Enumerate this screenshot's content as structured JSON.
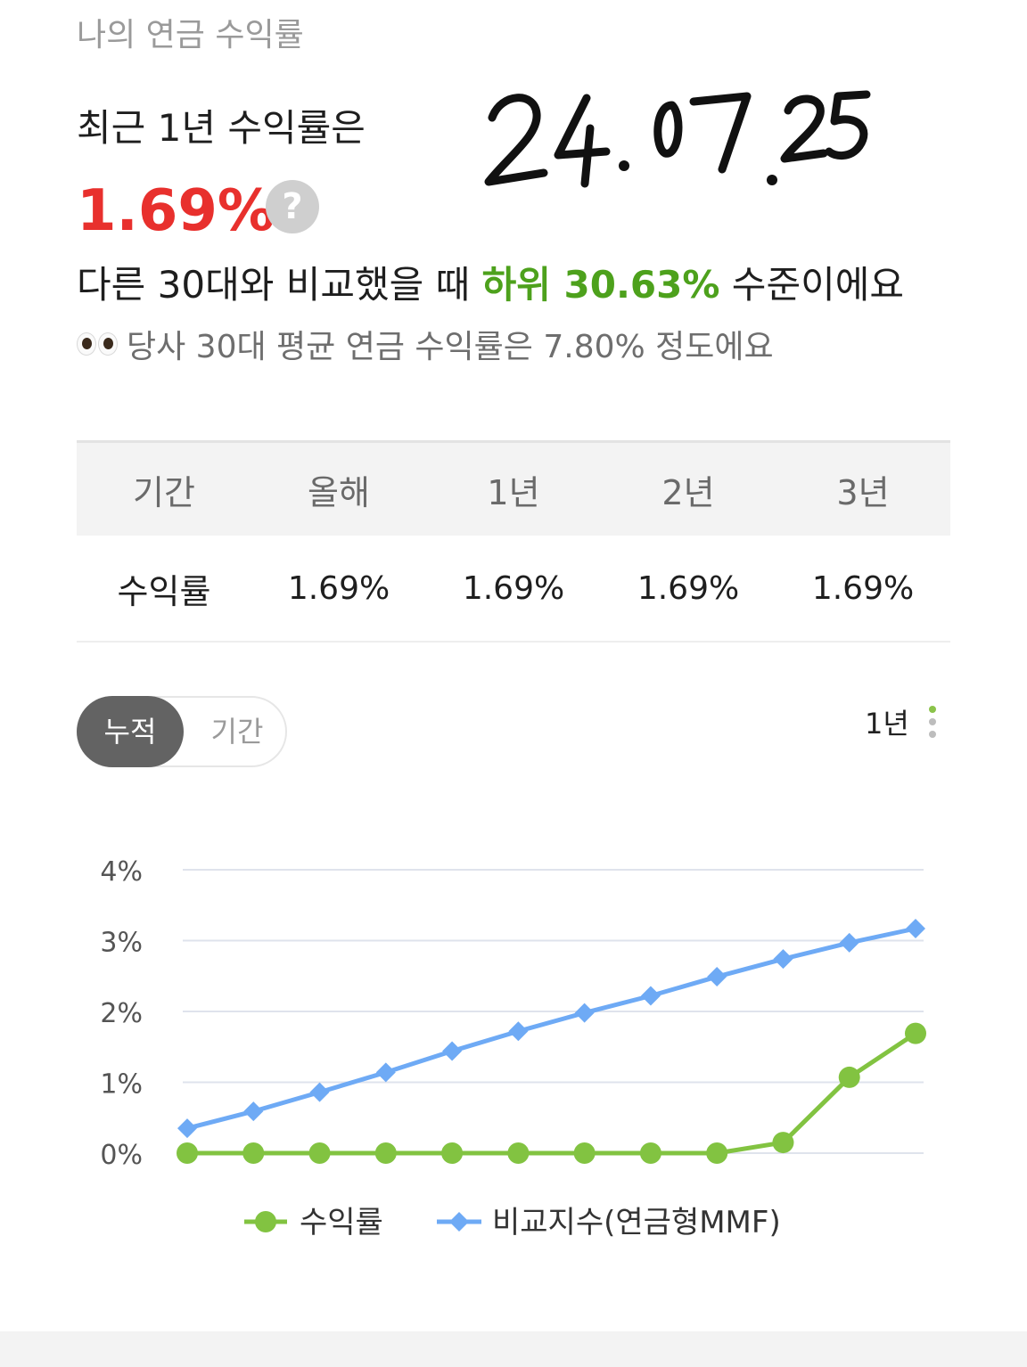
{
  "header": {
    "title": "나의 연금 수익률",
    "recent_label": "최근 1년 수익률은",
    "main_rate": "1.69%",
    "help_icon": "question-circle-icon",
    "handwritten_date": "24.07.25"
  },
  "comparison": {
    "prefix": "다른 30대와 비교했을 때 ",
    "highlight": "하위 30.63%",
    "suffix": " 수준이에요",
    "average_icon": "eyes-emoji-icon",
    "average_text": "당사 30대 평균 연금 수익률은 7.80% 정도에요"
  },
  "returns_table": {
    "headers": [
      "기간",
      "올해",
      "1년",
      "2년",
      "3년"
    ],
    "row_label": "수익률",
    "values": [
      "1.69%",
      "1.69%",
      "1.69%",
      "1.69%"
    ]
  },
  "controls": {
    "toggle_active": "누적",
    "toggle_inactive": "기간",
    "period": "1년",
    "menu_icon": "vertical-dots-icon"
  },
  "colors": {
    "accent_red": "#e8302d",
    "accent_green": "#4da11c",
    "return_series": "#82c341",
    "benchmark_series": "#6eaaf5",
    "grid": "#dfe3ec",
    "toggle_active_bg": "#636363"
  },
  "chart_data": {
    "type": "line",
    "title": "",
    "xlabel": "",
    "ylabel": "",
    "ylim": [
      0,
      4
    ],
    "yticks": [
      "0%",
      "1%",
      "2%",
      "3%",
      "4%"
    ],
    "grid": true,
    "legend": "bottom",
    "x": [
      1,
      2,
      3,
      4,
      5,
      6,
      7,
      8,
      9,
      10,
      11,
      12
    ],
    "series": [
      {
        "name": "수익률",
        "marker": "circle",
        "values": [
          0.0,
          0.0,
          0.0,
          0.0,
          0.0,
          0.0,
          0.0,
          0.0,
          0.0,
          0.15,
          1.07,
          1.69
        ]
      },
      {
        "name": "비교지수(연금형MMF)",
        "marker": "diamond",
        "values": [
          0.35,
          0.59,
          0.86,
          1.14,
          1.44,
          1.72,
          1.98,
          2.22,
          2.49,
          2.74,
          2.97,
          3.17
        ]
      }
    ]
  }
}
